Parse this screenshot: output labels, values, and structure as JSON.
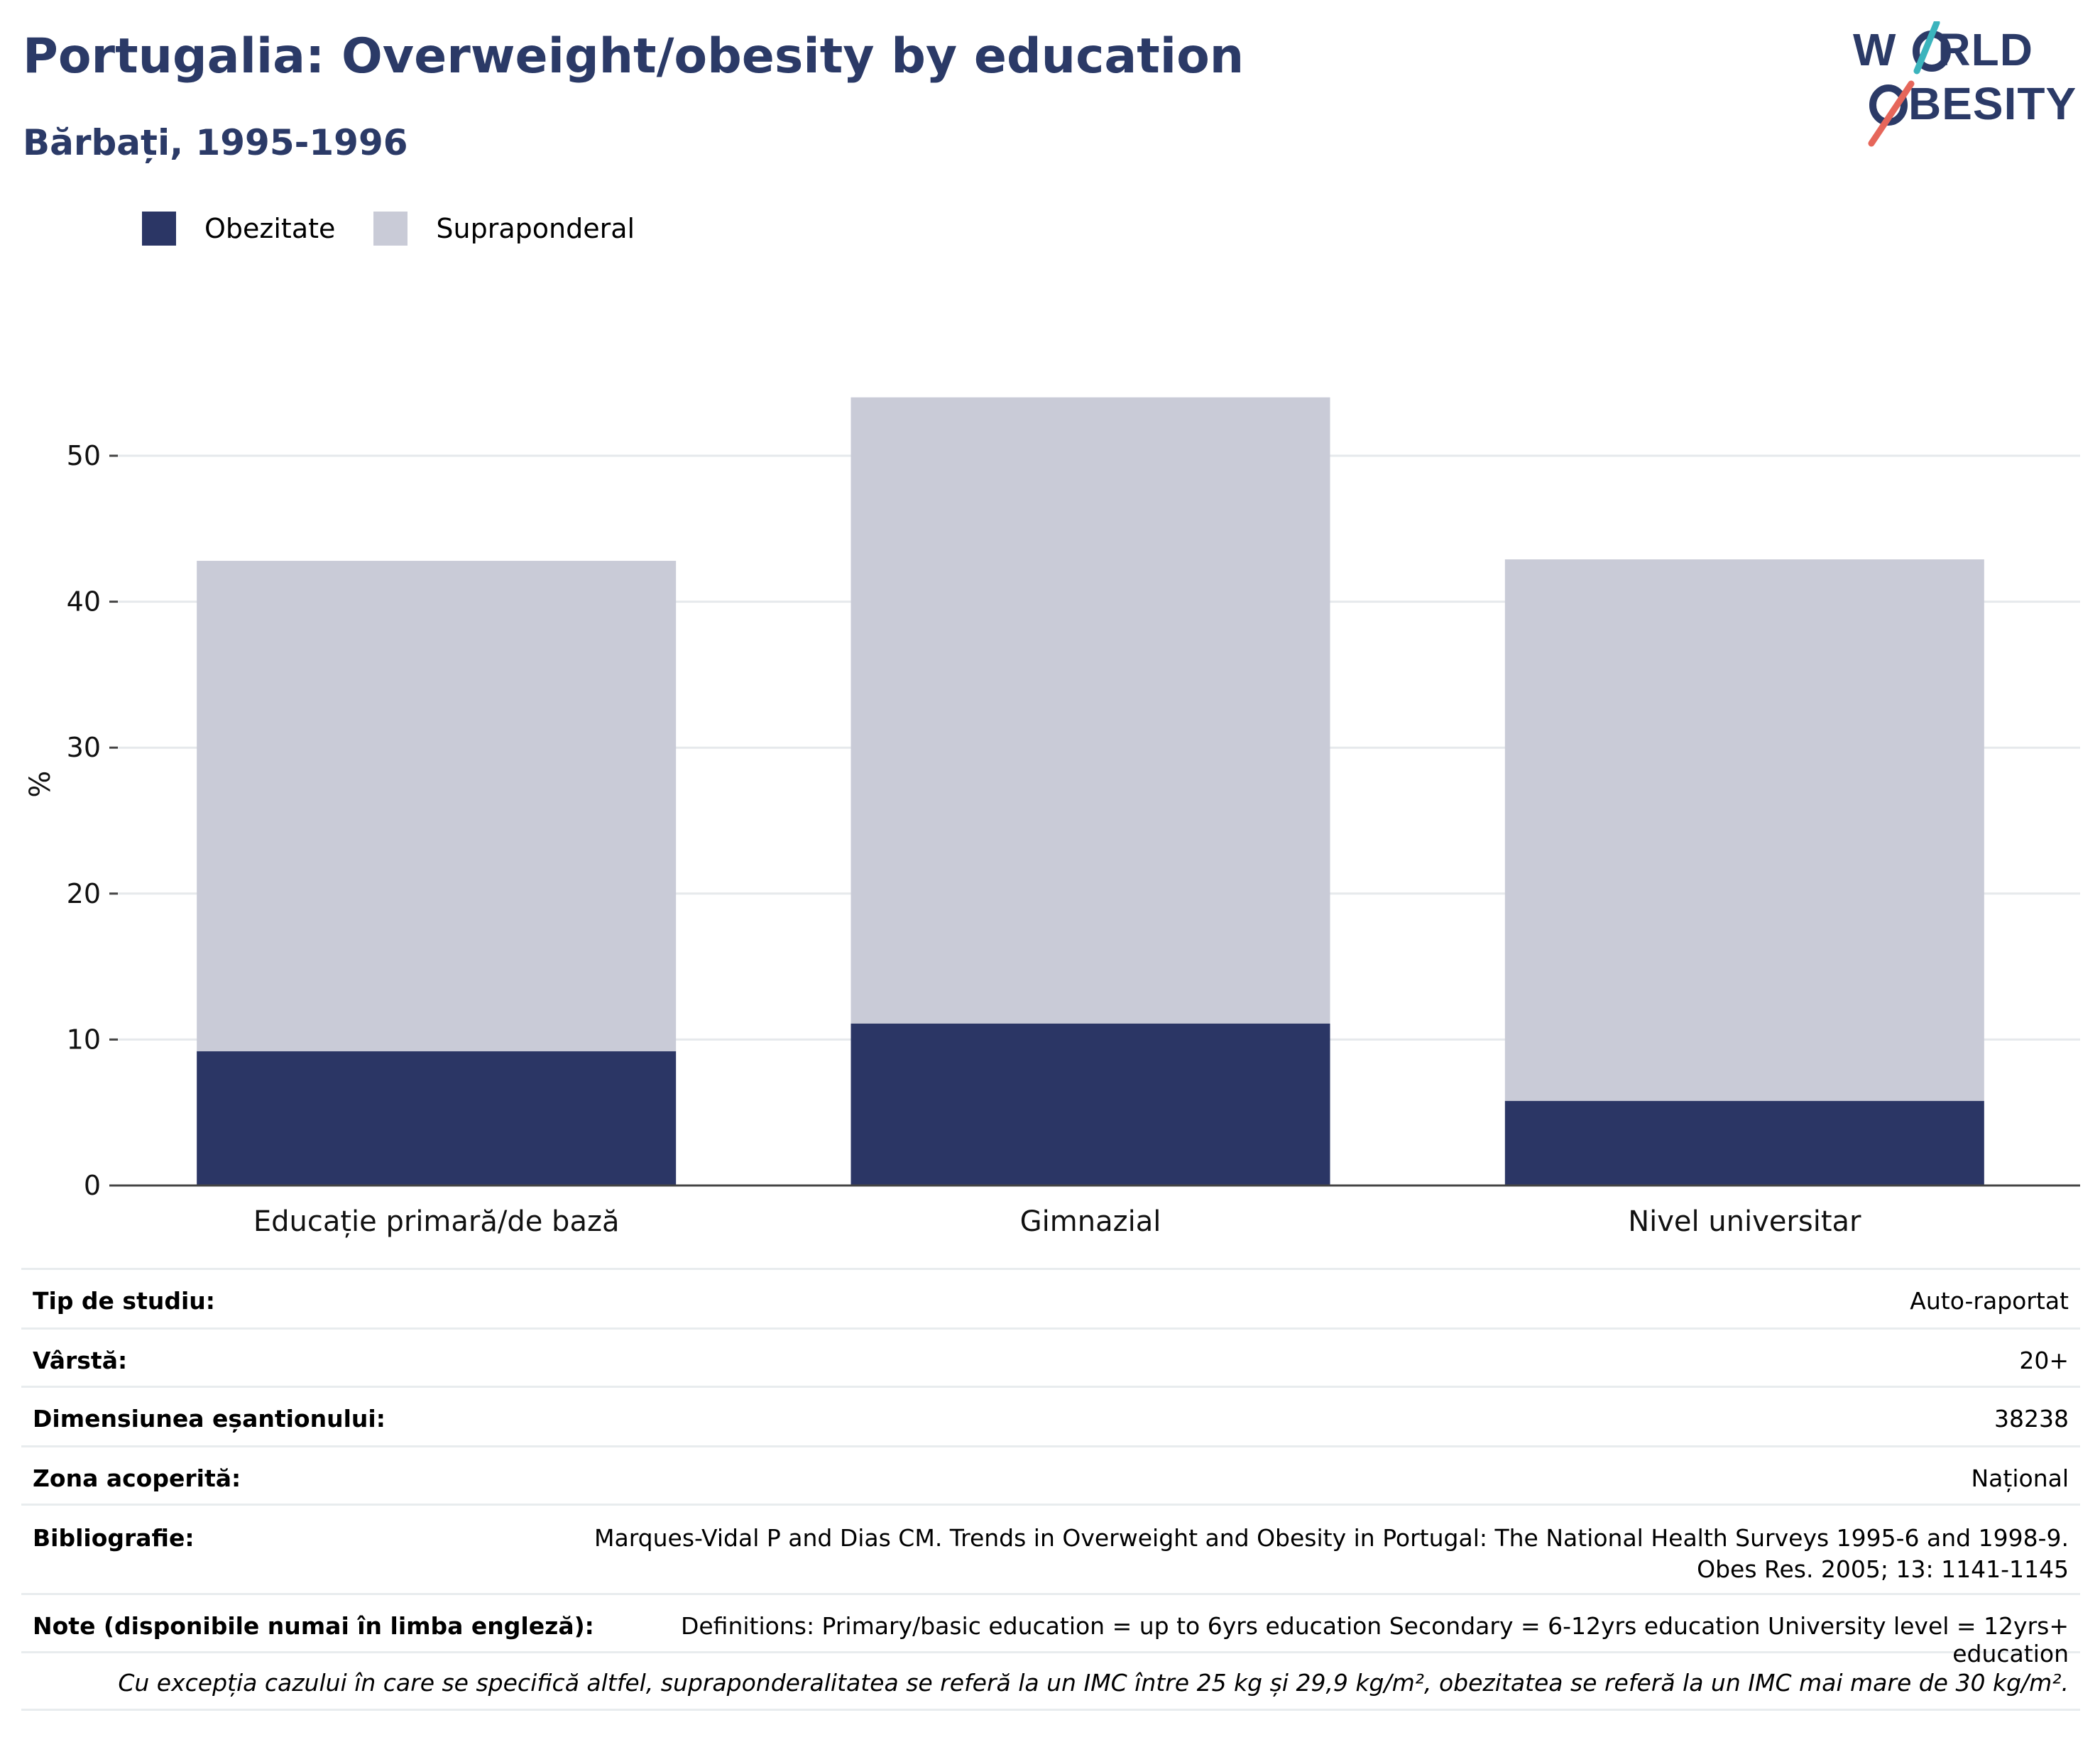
{
  "title": "Portugalia: Overweight/obesity by education",
  "subtitle": "Bărbați, 1995-1996",
  "logo": {
    "line1": "WORLD",
    "line2": "OBESITY"
  },
  "colors": {
    "obesity": "#2b3665",
    "overweight": "#c9cbd7",
    "title": "#2b3a67",
    "grid": "#e6e9ec",
    "axis": "#444444"
  },
  "chart_data": {
    "type": "bar",
    "stacked": true,
    "categories": [
      "Educație primară/de bază",
      "Gimnazial",
      "Nivel universitar"
    ],
    "series": [
      {
        "name": "Obezitate",
        "values": [
          9.2,
          11.1,
          5.8
        ]
      },
      {
        "name": "Supraponderal",
        "values": [
          33.6,
          42.9,
          37.1
        ]
      }
    ],
    "ylabel": "%",
    "ylim": [
      0,
      55
    ],
    "yticks": [
      0,
      10,
      20,
      30,
      40,
      50
    ],
    "grid": true,
    "legend_position": "top-left"
  },
  "info": [
    {
      "label": "Tip de studiu:",
      "value": "Auto-raportat"
    },
    {
      "label": "Vârstă:",
      "value": "20+"
    },
    {
      "label": "Dimensiunea eșantionului:",
      "value": "38238"
    },
    {
      "label": "Zona acoperită:",
      "value": "Național"
    },
    {
      "label": "Bibliografie:",
      "value": "Marques-Vidal P and Dias CM. Trends in Overweight and Obesity in Portugal: The National Health Surveys 1995-6 and 1998-9. Obes Res. 2005; 13: 1141-1145"
    },
    {
      "label": "Note (disponibile numai în limba engleză):",
      "value": "Definitions: Primary/basic education = up to 6yrs education Secondary = 6-12yrs education University level = 12yrs+ education"
    }
  ],
  "footnote": "Cu excepția cazului în care se specifică altfel, supraponderalitatea se referă la un IMC între 25 kg și 29,9 kg/m², obezitatea se referă la un IMC mai mare de 30 kg/m²."
}
